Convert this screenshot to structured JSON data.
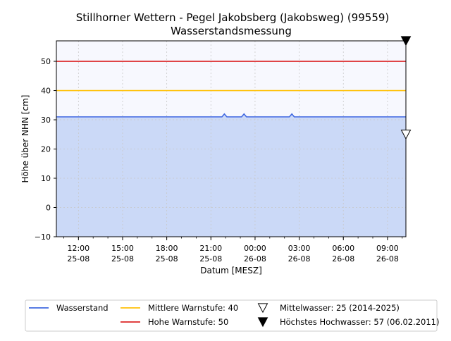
{
  "chart_data": {
    "type": "line",
    "title": "Stillhorner Wettern - Pegel Jakobsberg (Jakobsweg) (99559)",
    "subtitle": "Wasserstandsmessung",
    "xlabel": "Datum [MESZ]",
    "ylabel": "Höhe über NHN [cm]",
    "ylim": [
      -10,
      57
    ],
    "yticks": [
      -10,
      0,
      10,
      20,
      30,
      40,
      50
    ],
    "xlim": [
      "2025-08-25 10:30",
      "2025-08-26 10:15"
    ],
    "xticks": [
      {
        "time": "2025-08-25 12:00",
        "label_time": "12:00",
        "label_date": "25-08"
      },
      {
        "time": "2025-08-25 15:00",
        "label_time": "15:00",
        "label_date": "25-08"
      },
      {
        "time": "2025-08-25 18:00",
        "label_time": "18:00",
        "label_date": "25-08"
      },
      {
        "time": "2025-08-25 21:00",
        "label_time": "21:00",
        "label_date": "25-08"
      },
      {
        "time": "2025-08-26 00:00",
        "label_time": "00:00",
        "label_date": "26-08"
      },
      {
        "time": "2025-08-26 03:00",
        "label_time": "03:00",
        "label_date": "26-08"
      },
      {
        "time": "2025-08-26 06:00",
        "label_time": "06:00",
        "label_date": "26-08"
      },
      {
        "time": "2025-08-26 09:00",
        "label_time": "09:00",
        "label_date": "26-08"
      }
    ],
    "grid": true,
    "legend_position": "bottom",
    "series": [
      {
        "name": "Wasserstand",
        "color": "#4169e1",
        "fill_color": "#cbd9f7",
        "points": [
          {
            "x": "2025-08-25 10:30",
            "y": 31
          },
          {
            "x": "2025-08-25 21:45",
            "y": 31
          },
          {
            "x": "2025-08-25 21:55",
            "y": 32
          },
          {
            "x": "2025-08-25 22:05",
            "y": 31
          },
          {
            "x": "2025-08-25 23:05",
            "y": 31
          },
          {
            "x": "2025-08-25 23:15",
            "y": 32
          },
          {
            "x": "2025-08-25 23:25",
            "y": 31
          },
          {
            "x": "2025-08-26 02:20",
            "y": 31
          },
          {
            "x": "2025-08-26 02:30",
            "y": 32
          },
          {
            "x": "2025-08-26 02:40",
            "y": 31
          },
          {
            "x": "2025-08-26 10:15",
            "y": 31
          }
        ]
      },
      {
        "name": "Mittlere Warnstufe: 40",
        "kind": "hline",
        "y": 40,
        "color": "#ffc107"
      },
      {
        "name": "Hohe Warnstufe: 50",
        "kind": "hline",
        "y": 50,
        "color": "#dc2626"
      },
      {
        "name": "Mittelwasser: 25 (2014-2025)",
        "kind": "marker",
        "y": 25,
        "marker": "triangle-down-open"
      },
      {
        "name": "Höchstes Hochwasser: 57 (06.02.2011)",
        "kind": "marker",
        "y": 57,
        "marker": "triangle-down-filled"
      }
    ],
    "legend": [
      "Wasserstand",
      "Mittlere Warnstufe: 40",
      "Mittelwasser: 25 (2014-2025)",
      "Hohe Warnstufe: 50",
      "Höchstes Hochwasser: 57 (06.02.2011)"
    ],
    "colors": {
      "plot_background": "#f7f8fe",
      "grid": "#c8c8c8",
      "legend_border": "#cccccc"
    }
  }
}
